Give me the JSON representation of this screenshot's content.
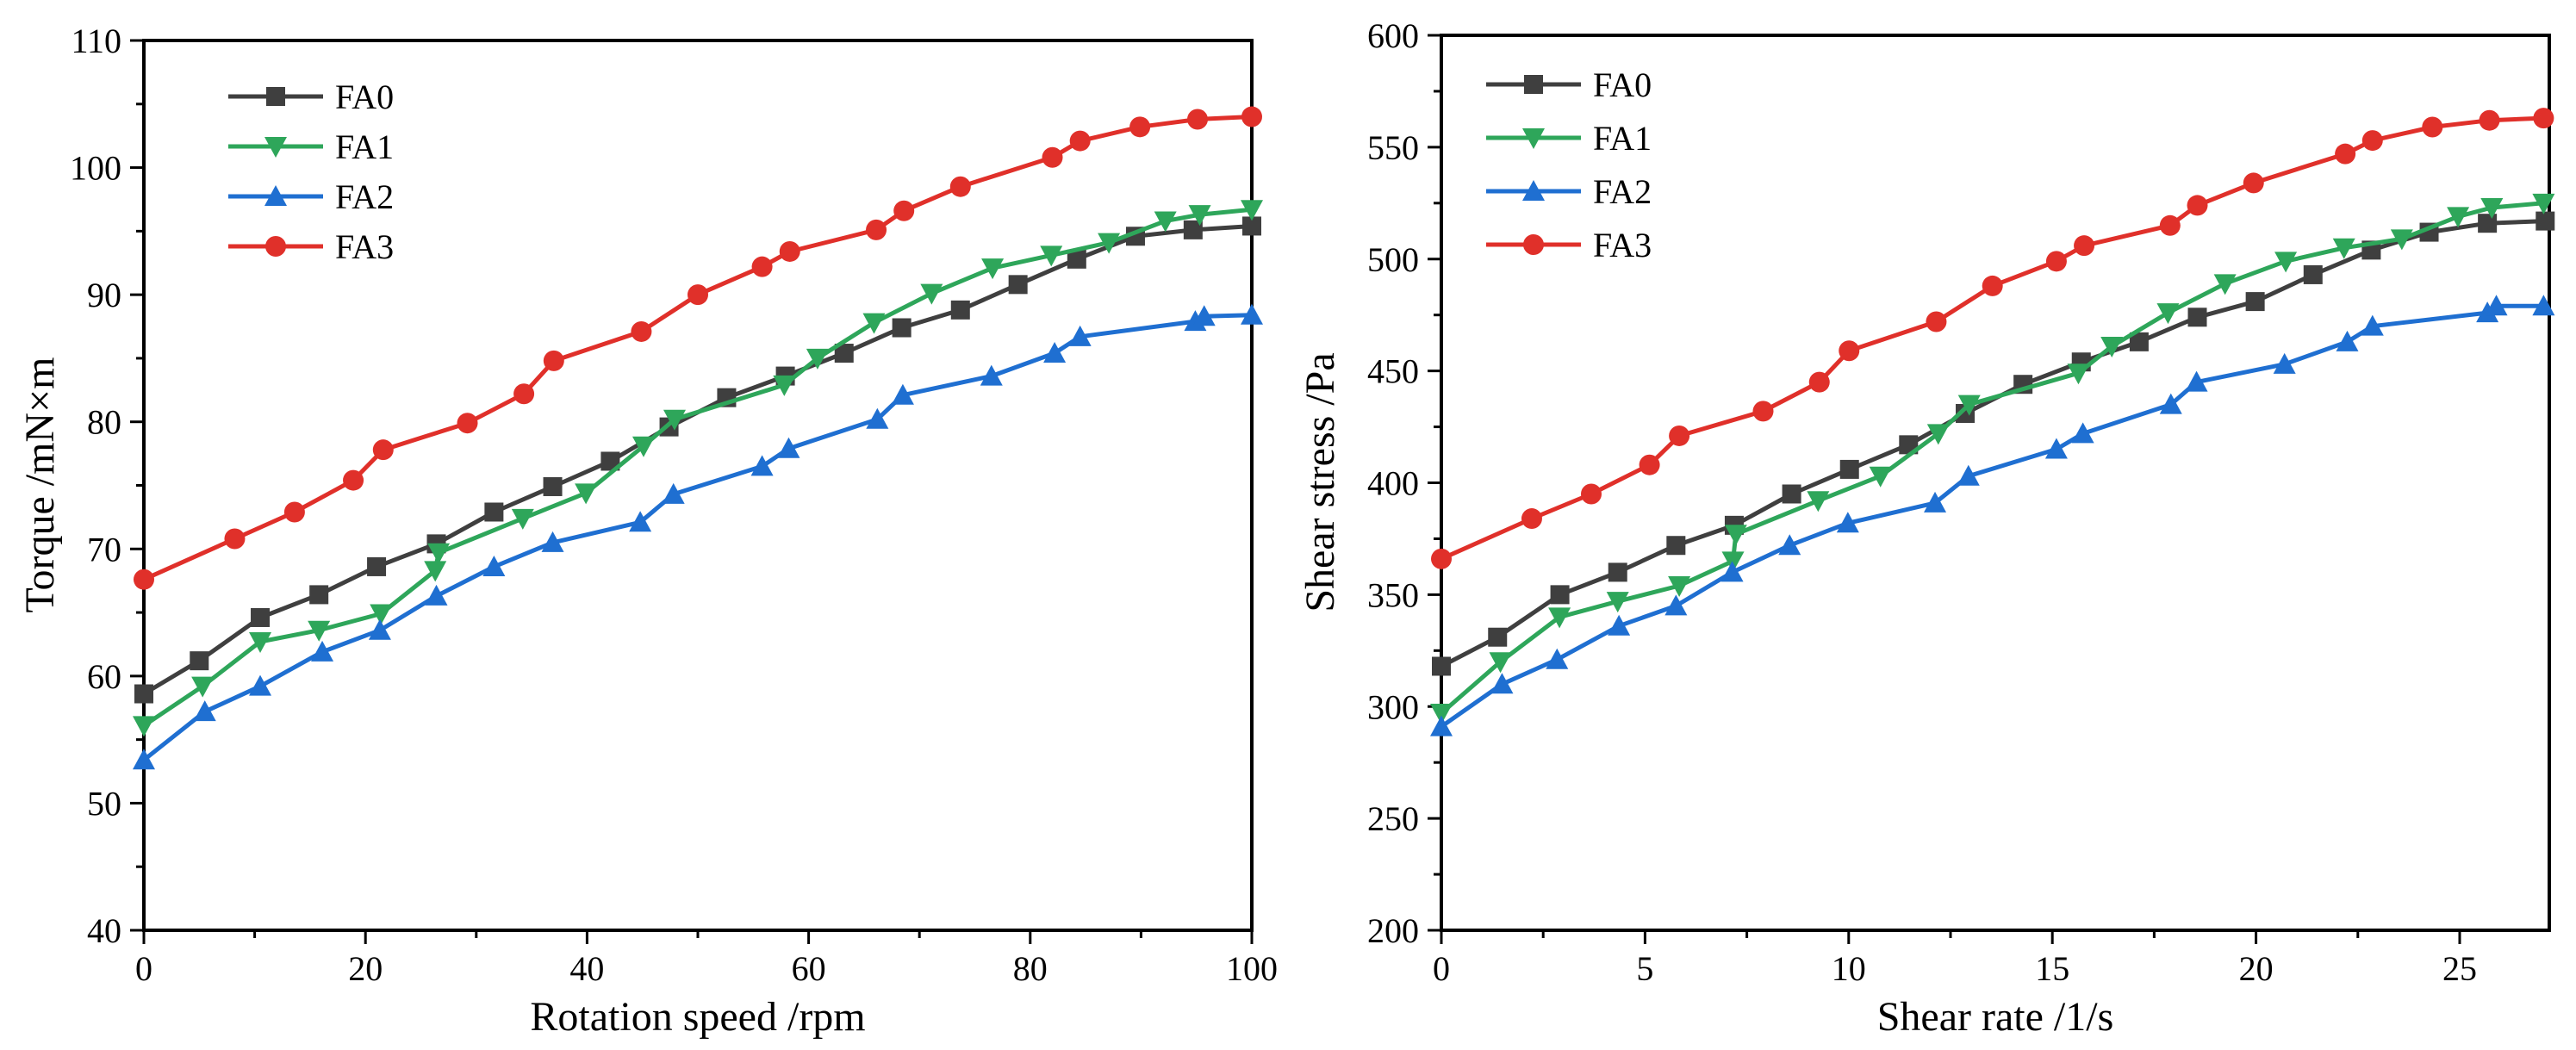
{
  "colors": {
    "FA0": "#3f3f3f",
    "FA1": "#2ea65a",
    "FA2": "#1f6fd1",
    "FA3": "#e0302a"
  },
  "chart_data": [
    {
      "type": "line",
      "xlabel": "Rotation speed /rpm",
      "ylabel": "Torque /mN×m",
      "xlim": [
        0,
        100
      ],
      "ylim": [
        40,
        110
      ],
      "xticks": [
        0,
        20,
        40,
        60,
        80,
        100
      ],
      "yticks": [
        40,
        50,
        60,
        70,
        80,
        90,
        100,
        110
      ],
      "legend_position": "top-left",
      "series": [
        {
          "name": "FA0",
          "marker": "square",
          "x": [
            0,
            5,
            10.5,
            15.8,
            21,
            26.4,
            31.6,
            36.9,
            42.1,
            47.4,
            52.6,
            57.9,
            63.2,
            68.4,
            73.7,
            78.9,
            84.2,
            89.5,
            94.7,
            100
          ],
          "y": [
            58.6,
            61.2,
            64.6,
            66.4,
            68.6,
            70.4,
            72.9,
            74.9,
            76.9,
            79.6,
            81.9,
            83.6,
            85.4,
            87.4,
            88.8,
            90.8,
            92.8,
            94.6,
            95.1,
            95.4
          ]
        },
        {
          "name": "FA1",
          "marker": "triangle-down",
          "x": [
            0,
            5.3,
            10.5,
            15.8,
            21.4,
            26.3,
            26.6,
            34.2,
            39.9,
            45.1,
            47.9,
            57.8,
            60.8,
            65.9,
            71.1,
            76.6,
            81.9,
            87.1,
            92.2,
            95.3,
            100
          ],
          "y": [
            56.1,
            59.2,
            62.7,
            63.6,
            64.9,
            68.3,
            69.7,
            72.4,
            74.4,
            78.1,
            80.2,
            82.9,
            85.0,
            87.8,
            90.1,
            92.1,
            93.1,
            94.1,
            95.8,
            96.3,
            96.7
          ]
        },
        {
          "name": "FA2",
          "marker": "triangle-up",
          "x": [
            0,
            5.5,
            10.5,
            16.1,
            21.3,
            26.4,
            31.6,
            36.9,
            44.8,
            47.8,
            55.8,
            58.2,
            66.2,
            68.5,
            76.5,
            82.2,
            84.5,
            94.9,
            95.7,
            100
          ],
          "y": [
            53.4,
            57.2,
            59.2,
            61.9,
            63.6,
            66.3,
            68.6,
            70.5,
            72.1,
            74.3,
            76.5,
            77.9,
            80.2,
            82.1,
            83.6,
            85.4,
            86.7,
            87.9,
            88.3,
            88.4
          ]
        },
        {
          "name": "FA3",
          "marker": "circle",
          "x": [
            0,
            8.2,
            13.6,
            18.9,
            21.6,
            29.2,
            34.3,
            37,
            44.9,
            50,
            55.8,
            58.3,
            66.1,
            68.6,
            73.7,
            82,
            84.5,
            89.9,
            95.1,
            100
          ],
          "y": [
            67.6,
            70.8,
            72.9,
            75.4,
            77.8,
            79.9,
            82.2,
            84.8,
            87.1,
            90.0,
            92.2,
            93.4,
            95.1,
            96.6,
            98.5,
            100.8,
            102.1,
            103.2,
            103.8,
            104.0
          ]
        }
      ]
    },
    {
      "type": "line",
      "xlabel": "Shear rate /1/s",
      "ylabel": "Shear stress /Pa",
      "xlim": [
        0,
        27.2
      ],
      "ylim": [
        200,
        600
      ],
      "xticks": [
        0,
        5,
        10,
        15,
        20,
        25
      ],
      "yticks": [
        200,
        250,
        300,
        350,
        400,
        450,
        500,
        550,
        600
      ],
      "legend_position": "top-left",
      "series": [
        {
          "name": "FA0",
          "marker": "square",
          "x": [
            0,
            1.38,
            2.91,
            4.33,
            5.76,
            7.19,
            8.6,
            10.02,
            11.47,
            12.86,
            14.28,
            15.71,
            17.13,
            18.56,
            19.98,
            21.4,
            22.83,
            24.25,
            25.68,
            27.1
          ],
          "y": [
            318,
            331,
            350,
            360,
            372,
            381,
            395,
            406,
            417,
            431,
            444,
            454,
            463,
            474,
            481,
            493,
            504,
            512,
            516,
            517
          ]
        },
        {
          "name": "FA1",
          "marker": "triangle-down",
          "x": [
            0,
            1.45,
            2.9,
            4.33,
            5.84,
            7.16,
            7.23,
            9.25,
            10.78,
            12.2,
            12.96,
            15.64,
            16.46,
            17.84,
            19.24,
            20.73,
            22.16,
            23.58,
            24.96,
            25.79,
            27.06
          ],
          "y": [
            297,
            320,
            340,
            347,
            354,
            365,
            377,
            392,
            403,
            422,
            435,
            449,
            461,
            476,
            489,
            499,
            505,
            509,
            519,
            523,
            525
          ]
        },
        {
          "name": "FA2",
          "marker": "triangle-up",
          "x": [
            0,
            1.49,
            2.84,
            4.36,
            5.76,
            7.14,
            8.55,
            9.98,
            12.12,
            12.94,
            15.1,
            15.75,
            17.91,
            18.54,
            20.7,
            22.24,
            22.86,
            25.68,
            25.9,
            27.06
          ],
          "y": [
            291,
            310,
            321,
            336,
            345,
            360,
            372,
            382,
            391,
            403,
            415,
            422,
            435,
            445,
            453,
            463,
            470,
            476,
            479,
            479
          ]
        },
        {
          "name": "FA3",
          "marker": "circle",
          "x": [
            0,
            2.22,
            3.68,
            5.11,
            5.84,
            7.9,
            9.28,
            10.01,
            12.15,
            13.53,
            15.1,
            15.78,
            17.89,
            18.56,
            19.94,
            22.19,
            22.86,
            24.33,
            25.73,
            27.06
          ],
          "y": [
            366,
            384,
            395,
            408,
            421,
            432,
            445,
            459,
            472,
            488,
            499,
            506,
            515,
            524,
            534,
            547,
            553,
            559,
            562,
            563
          ]
        }
      ]
    }
  ]
}
